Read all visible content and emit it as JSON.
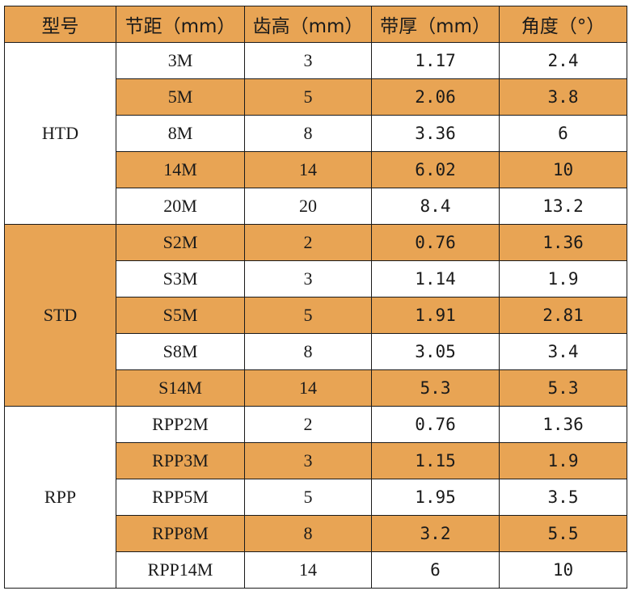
{
  "colors": {
    "highlight": "#E8A454",
    "plain": "#FFFFFF",
    "border": "#1A1A1A"
  },
  "header": [
    "型号",
    "节距（mm）",
    "齿高（mm）",
    "带厚（mm）",
    "角度（°）"
  ],
  "groups": [
    {
      "name": "HTD",
      "rows": [
        [
          "3M",
          "3",
          "1.17",
          "2.4"
        ],
        [
          "5M",
          "5",
          "2.06",
          "3.8"
        ],
        [
          "8M",
          "8",
          "3.36",
          "6"
        ],
        [
          "14M",
          "14",
          "6.02",
          "10"
        ],
        [
          "20M",
          "20",
          "8.4",
          "13.2"
        ]
      ]
    },
    {
      "name": "STD",
      "rows": [
        [
          "S2M",
          "2",
          "0.76",
          "1.36"
        ],
        [
          "S3M",
          "3",
          "1.14",
          "1.9"
        ],
        [
          "S5M",
          "5",
          "1.91",
          "2.81"
        ],
        [
          "S8M",
          "8",
          "3.05",
          "3.4"
        ],
        [
          "S14M",
          "14",
          "5.3",
          "5.3"
        ]
      ]
    },
    {
      "name": "RPP",
      "rows": [
        [
          "RPP2M",
          "2",
          "0.76",
          "1.36"
        ],
        [
          "RPP3M",
          "3",
          "1.15",
          "1.9"
        ],
        [
          "RPP5M",
          "5",
          "1.95",
          "3.5"
        ],
        [
          "RPP8M",
          "8",
          "3.2",
          "5.5"
        ],
        [
          "RPP14M",
          "14",
          "6",
          "10"
        ]
      ]
    }
  ]
}
